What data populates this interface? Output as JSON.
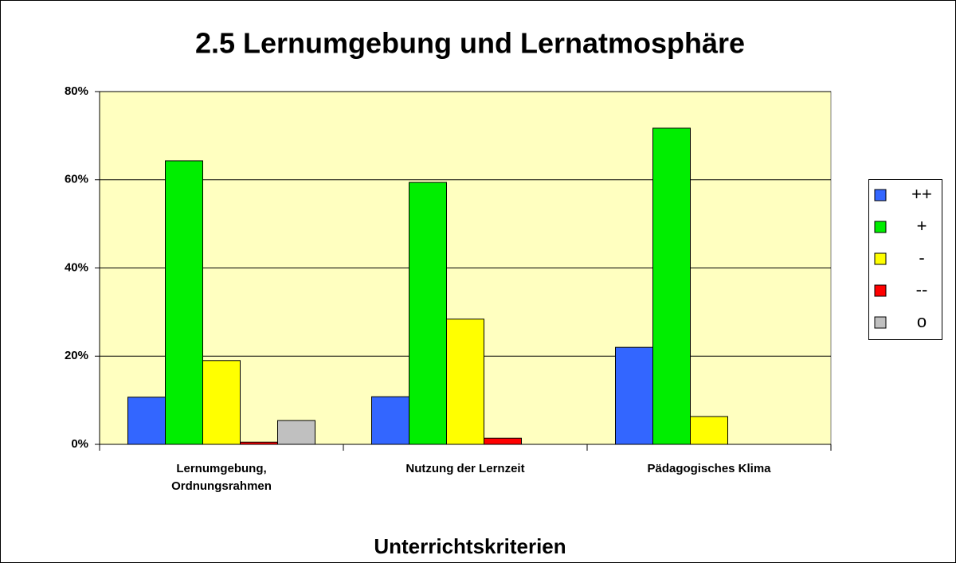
{
  "chart_data": {
    "type": "bar",
    "title": "2.5 Lernumgebung und Lernatmosphäre",
    "x_label": "Unterrichtskriterien",
    "categories": [
      "Lernumgebung, Ordnungsrahmen",
      "Nutzung der Lernzeit",
      "Pädagogisches Klima"
    ],
    "series": [
      {
        "name": "++",
        "color": "#3366ff",
        "values": [
          10.7,
          10.8,
          22.0
        ]
      },
      {
        "name": "+",
        "color": "#00ee00",
        "values": [
          64.3,
          59.4,
          71.7
        ]
      },
      {
        "name": "-",
        "color": "#ffff00",
        "values": [
          19.0,
          28.4,
          6.3
        ]
      },
      {
        "name": "--",
        "color": "#ff0000",
        "values": [
          0.5,
          1.4,
          0
        ]
      },
      {
        "name": "o",
        "color": "#c0c0c0",
        "values": [
          5.4,
          0,
          0
        ]
      }
    ],
    "ylim": [
      0,
      80
    ],
    "yticks": [
      {
        "value": 0,
        "label": "0%"
      },
      {
        "value": 20,
        "label": "20%"
      },
      {
        "value": 40,
        "label": "40%"
      },
      {
        "value": 60,
        "label": "60%"
      },
      {
        "value": 80,
        "label": "80%"
      }
    ],
    "grid": true,
    "legend": "right"
  }
}
